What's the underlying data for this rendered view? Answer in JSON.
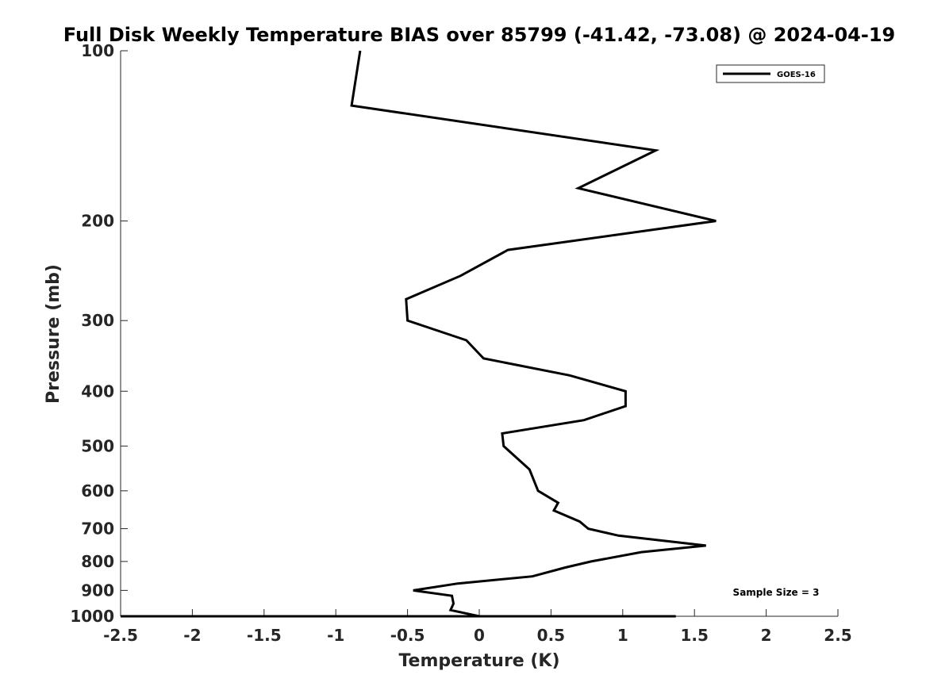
{
  "chart_data": {
    "type": "line",
    "title": "Full Disk Weekly Temperature BIAS over 85799 (-41.42, -73.08) @ 2024-04-19",
    "xlabel": "Temperature (K)",
    "ylabel": "Pressure (mb)",
    "xlim": [
      -2.5,
      2.5
    ],
    "ylim": [
      1000,
      100
    ],
    "yscale": "log",
    "xticks": [
      -2.5,
      -2,
      -1.5,
      -1,
      -0.5,
      0,
      0.5,
      1,
      1.5,
      2,
      2.5
    ],
    "xtick_labels": [
      "-2.5",
      "-2",
      "-1.5",
      "-1",
      "-0.5",
      "0",
      "0.5",
      "1",
      "1.5",
      "2",
      "2.5"
    ],
    "yticks": [
      100,
      200,
      300,
      400,
      500,
      600,
      700,
      800,
      900,
      1000
    ],
    "ytick_labels": [
      "100",
      "200",
      "300",
      "400",
      "500",
      "600",
      "700",
      "800",
      "900",
      "1000"
    ],
    "legend": {
      "position": "top-right",
      "entries": [
        "GOES-16"
      ]
    },
    "annotation": "Sample Size = 3",
    "series": [
      {
        "name": "GOES-16",
        "color": "#000000",
        "temperature": [
          -0.83,
          -0.89,
          1.23,
          0.69,
          1.65,
          0.2,
          -0.13,
          -0.51,
          -0.5,
          -0.09,
          0.03,
          0.63,
          1.02,
          1.02,
          0.73,
          0.16,
          0.17,
          0.35,
          0.41,
          0.55,
          0.52,
          0.7,
          0.76,
          0.97,
          1.58,
          1.13,
          0.78,
          0.6,
          0.37,
          -0.15,
          -0.46,
          -0.19,
          -0.18,
          -0.2,
          0.0,
          0.45,
          0.33,
          0.45,
          -0.02,
          -2.5,
          -2.5,
          -2.0,
          1.37
        ],
        "pressure": [
          100,
          125,
          150,
          175,
          200,
          225,
          250,
          275,
          300,
          325,
          350,
          375,
          400,
          425,
          450,
          475,
          500,
          550,
          600,
          630,
          650,
          680,
          700,
          720,
          750,
          770,
          800,
          820,
          850,
          875,
          900,
          920,
          950,
          975,
          1000,
          1000,
          1000,
          1000,
          1000,
          1000,
          1000,
          1000,
          1000
        ]
      }
    ]
  }
}
